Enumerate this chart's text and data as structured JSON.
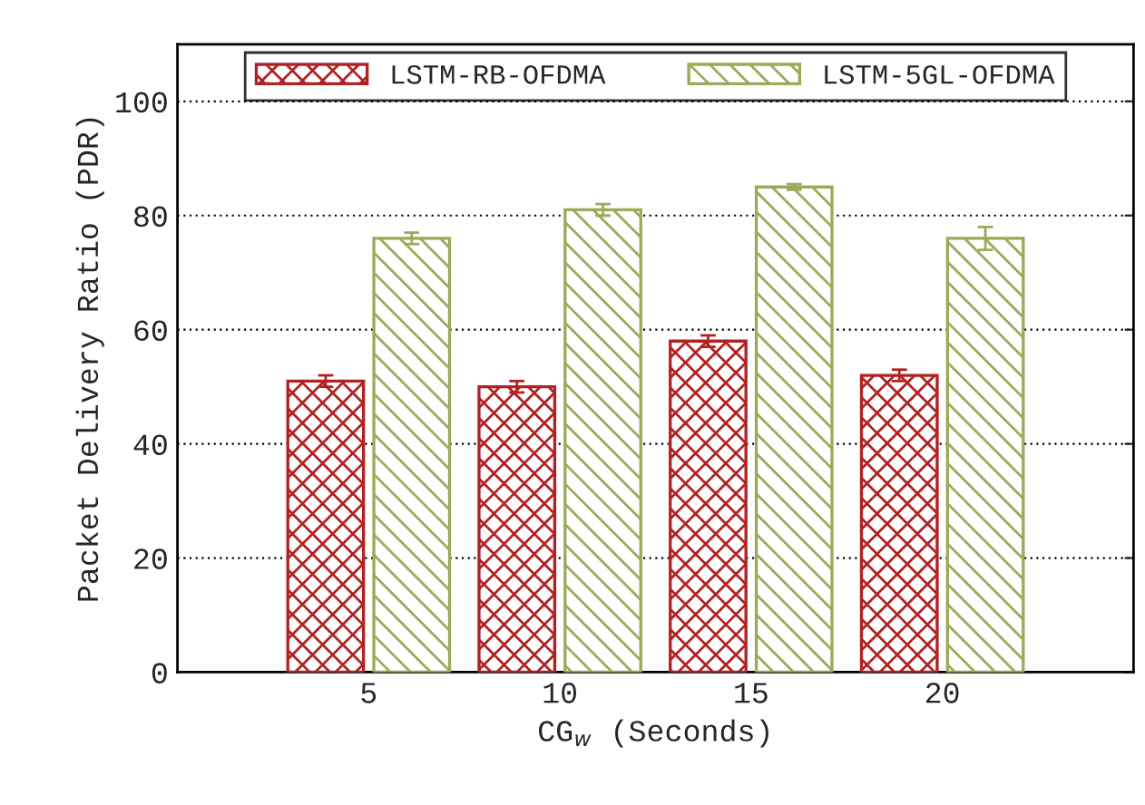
{
  "chart_data": {
    "type": "bar",
    "xlabel": "CG$_{w}$ (Seconds)",
    "ylabel": "Packet Delivery Ratio (PDR)",
    "categories": [
      "5",
      "10",
      "15",
      "20"
    ],
    "series": [
      {
        "name": "LSTM-RB-OFDMA",
        "color": "#b22222",
        "values": [
          51,
          50,
          58,
          52
        ],
        "errors": [
          1,
          1,
          1,
          1
        ]
      },
      {
        "name": "LSTM-5GL-OFDMA",
        "color": "#9aab5a",
        "values": [
          76,
          81,
          85,
          76
        ],
        "errors": [
          1,
          1,
          0.5,
          2
        ]
      }
    ],
    "ylim": [
      0,
      110
    ],
    "yticks": [
      0,
      20,
      40,
      60,
      80,
      100
    ],
    "grid": "y",
    "legend": "top"
  }
}
